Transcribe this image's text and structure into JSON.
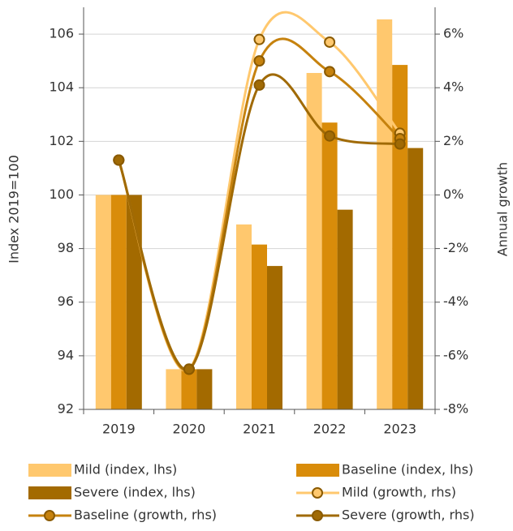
{
  "chart_data": {
    "type": "bar-line",
    "y_label": "Index 2019=100",
    "y2_label": "Annual growth",
    "categories": [
      "2019",
      "2020",
      "2021",
      "2022",
      "2023"
    ],
    "ylim": [
      92,
      107
    ],
    "yticks": [
      92,
      94,
      96,
      98,
      100,
      102,
      104,
      106
    ],
    "y2lim": [
      -8,
      7
    ],
    "y2ticks": [
      {
        "value": -8,
        "label": "-8%"
      },
      {
        "value": -6,
        "label": "-6%"
      },
      {
        "value": -4,
        "label": "-4%"
      },
      {
        "value": -2,
        "label": "-2%"
      },
      {
        "value": 0,
        "label": "0%"
      },
      {
        "value": 2,
        "label": "2%"
      },
      {
        "value": 4,
        "label": "4%"
      },
      {
        "value": 6,
        "label": "6%"
      }
    ],
    "grid": true,
    "series": [
      {
        "name": "Mild (index, lhs)",
        "type": "bar",
        "color": "#ffc86e",
        "values": [
          100,
          93.5,
          98.9,
          104.55,
          106.55
        ]
      },
      {
        "name": "Baseline (index, lhs)",
        "type": "bar",
        "color": "#d98c0a",
        "values": [
          100,
          93.5,
          98.15,
          102.7,
          104.85
        ]
      },
      {
        "name": "Severe (index, lhs)",
        "type": "bar",
        "color": "#a36a00",
        "values": [
          100,
          93.5,
          97.35,
          99.45,
          101.75
        ]
      },
      {
        "name": "Mild (growth, rhs)",
        "type": "line",
        "axis": "y2",
        "color": "#ffc86e",
        "values": [
          1.3,
          -6.5,
          5.8,
          5.7,
          2.3
        ]
      },
      {
        "name": "Baseline (growth, rhs)",
        "type": "line",
        "axis": "y2",
        "color": "#c6820e",
        "values": [
          1.3,
          -6.5,
          5.0,
          4.6,
          2.1
        ]
      },
      {
        "name": "Severe (growth, rhs)",
        "type": "line",
        "axis": "y2",
        "color": "#a06a05",
        "values": [
          1.3,
          -6.5,
          4.1,
          2.2,
          1.9
        ]
      }
    ]
  }
}
